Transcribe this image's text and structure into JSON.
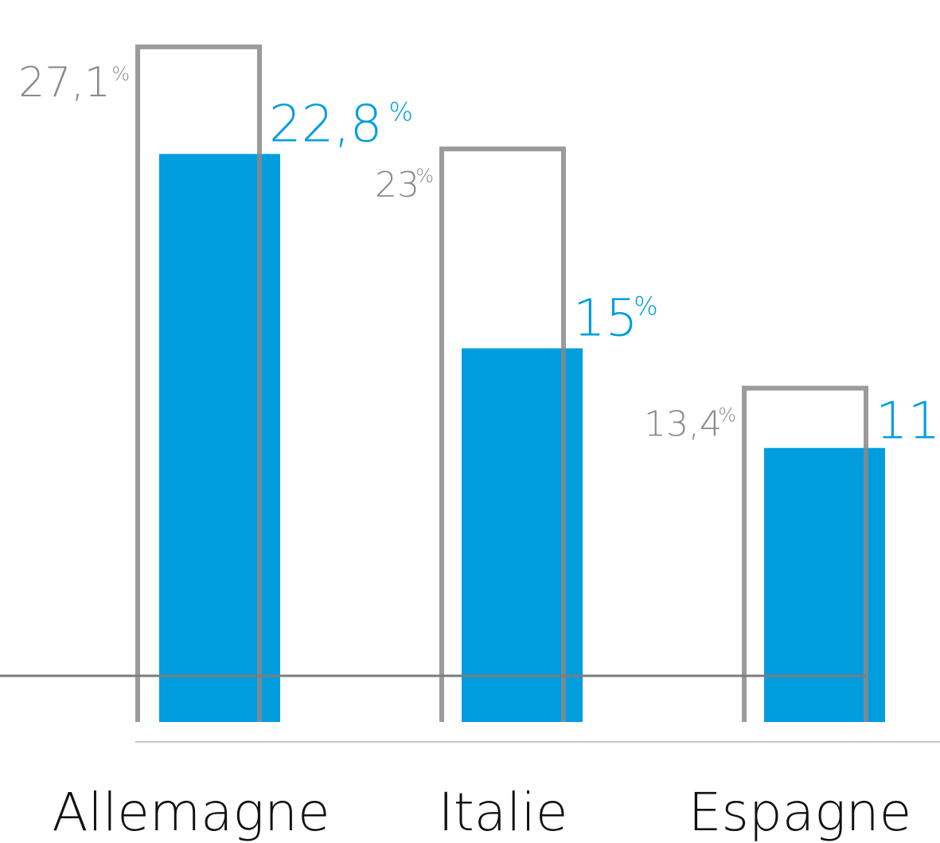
{
  "chart_data": {
    "type": "bar",
    "categories": [
      "Allemagne",
      "Italie",
      "Espagne"
    ],
    "series": [
      {
        "values": [
          27.1,
          23,
          13.4
        ],
        "labels": [
          "27,1",
          "23",
          "13,4"
        ],
        "style": "outline",
        "color": "#8a8a8a"
      },
      {
        "values": [
          22.8,
          15,
          11
        ],
        "labels": [
          "22,8",
          "15",
          "11"
        ],
        "style": "filled",
        "color": "#009ddf"
      }
    ],
    "percent_sign": "%",
    "reference_line": true,
    "title": "",
    "xlabel": "",
    "ylabel": "",
    "ylim": [
      0,
      28.5
    ],
    "grid": false,
    "legend": "none"
  }
}
